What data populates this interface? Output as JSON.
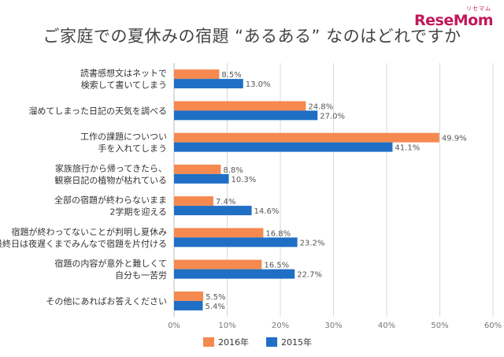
{
  "logo": {
    "main": "ReseMom",
    "sub": "リセマム"
  },
  "chart_data": {
    "type": "bar",
    "orientation": "horizontal",
    "title": "ご家庭での夏休みの宿題 “あるある” なのはどれですか",
    "categories": [
      [
        "読書感想文はネットで",
        "検索して書いてしまう"
      ],
      [
        "溜めてしまった日記の天気を調べる"
      ],
      [
        "工作の課題についつい",
        "手を入れてしまう"
      ],
      [
        "家族旅行から帰ってきたら、",
        "観察日記の植物が枯れている"
      ],
      [
        "全部の宿題が終わらないまま",
        "2学期を迎える"
      ],
      [
        "宿題が終わってないことが判明し夏休み",
        "最終日は夜遅くまでみんなで宿題を片付ける"
      ],
      [
        "宿題の内容が意外と難しくて",
        "自分も一苦労"
      ],
      [
        "その他にあればお答えください"
      ]
    ],
    "series": [
      {
        "name": "2016年",
        "color": "#f5894f",
        "values": [
          8.5,
          24.8,
          49.9,
          8.8,
          7.4,
          16.8,
          16.5,
          5.5
        ],
        "labels": [
          "8.5%",
          "24.8%",
          "49.9%",
          "8.8%",
          "7.4%",
          "16.8%",
          "16.5%",
          "5.5%"
        ]
      },
      {
        "name": "2015年",
        "color": "#1f6fc5",
        "values": [
          13.0,
          27.0,
          41.1,
          10.3,
          14.6,
          23.2,
          22.7,
          5.4
        ],
        "labels": [
          "13.0%",
          "27.0%",
          "41.1%",
          "10.3%",
          "14.6%",
          "23.2%",
          "22.7%",
          "5.4%"
        ]
      }
    ],
    "xlim": [
      0,
      60
    ],
    "ticks": [
      0,
      10,
      20,
      30,
      40,
      50,
      60
    ],
    "tick_labels": [
      "0%",
      "10%",
      "20%",
      "30%",
      "40%",
      "50%",
      "60%"
    ],
    "grid": true,
    "legend": "bottom"
  }
}
